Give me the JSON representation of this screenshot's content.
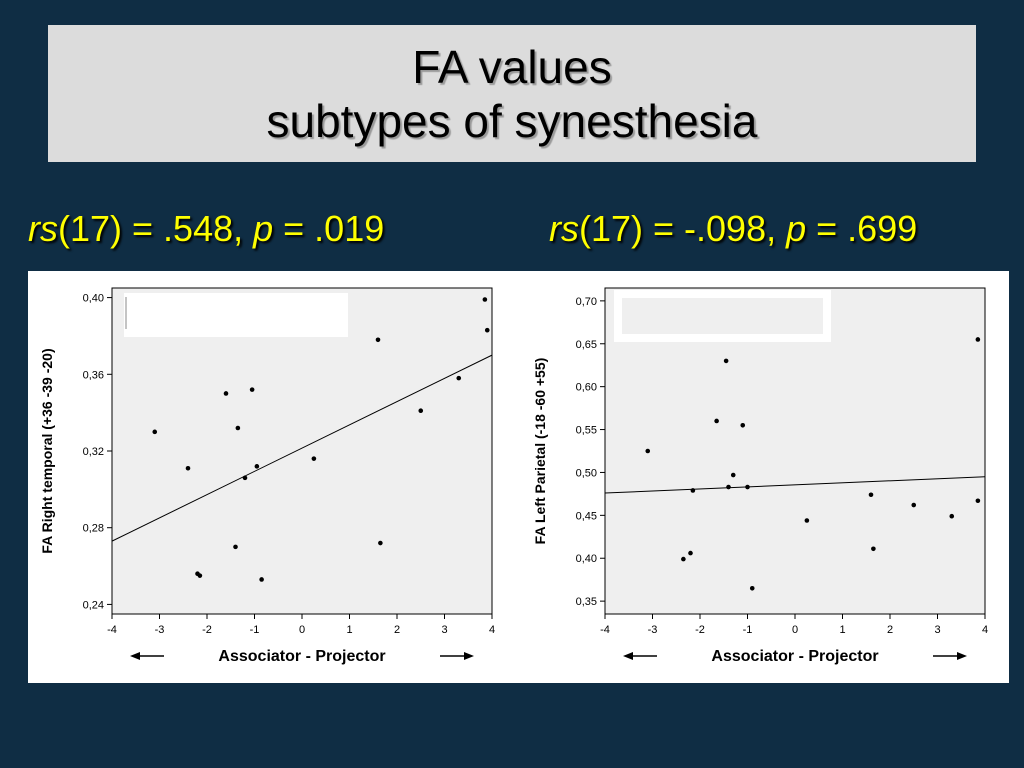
{
  "slide": {
    "title_line1": "FA values",
    "title_line2": "subtypes of synesthesia"
  },
  "stats": [
    {
      "italic1": "rs",
      "mid": "(17) = .548, ",
      "italic2": "p",
      "end": " = .019"
    },
    {
      "italic1": "rs",
      "mid": "(17) = -.098, ",
      "italic2": "p",
      "end": " = .699"
    }
  ],
  "colors": {
    "background": "#0f2d44",
    "title_box": "#dcdcdc",
    "stat_text": "#ffff00",
    "plot_bg": "#efefef"
  },
  "chart_data": [
    {
      "type": "scatter",
      "title": "",
      "xlabel": "Associator   -   Projector",
      "ylabel": "FA Right temporal (+36 -39 -20)",
      "xlim": [
        -4,
        4
      ],
      "ylim": [
        0.235,
        0.405
      ],
      "xticks": [
        -4,
        -3,
        -2,
        -1,
        0,
        1,
        2,
        3,
        4
      ],
      "xtick_labels": [
        "-4",
        "-3",
        "-2",
        "-1",
        "0",
        "1",
        "2",
        "3",
        "4"
      ],
      "yticks": [
        0.24,
        0.28,
        0.32,
        0.36,
        0.4
      ],
      "ytick_labels": [
        "0,24",
        "0,28",
        "0,32",
        "0,36",
        "0,40"
      ],
      "grid": false,
      "points": [
        {
          "x": 3.85,
          "y": 0.399
        },
        {
          "x": 3.9,
          "y": 0.383
        },
        {
          "x": 1.6,
          "y": 0.378
        },
        {
          "x": 3.3,
          "y": 0.358
        },
        {
          "x": -1.05,
          "y": 0.352
        },
        {
          "x": -1.6,
          "y": 0.35
        },
        {
          "x": 2.5,
          "y": 0.341
        },
        {
          "x": -1.35,
          "y": 0.332
        },
        {
          "x": -3.1,
          "y": 0.33
        },
        {
          "x": 0.25,
          "y": 0.316
        },
        {
          "x": -2.4,
          "y": 0.311
        },
        {
          "x": -0.95,
          "y": 0.312
        },
        {
          "x": -1.2,
          "y": 0.306
        },
        {
          "x": 1.65,
          "y": 0.272
        },
        {
          "x": -1.4,
          "y": 0.27
        },
        {
          "x": -2.2,
          "y": 0.256
        },
        {
          "x": -2.15,
          "y": 0.255
        },
        {
          "x": -0.85,
          "y": 0.253
        }
      ],
      "fit_line": {
        "x": [
          -4,
          4
        ],
        "y": [
          0.273,
          0.37
        ]
      }
    },
    {
      "type": "scatter",
      "title": "",
      "xlabel": "Associator   -   Projector",
      "ylabel": "FA Left Parietal (-18 -60 +55)",
      "xlim": [
        -4,
        4
      ],
      "ylim": [
        0.335,
        0.715
      ],
      "xticks": [
        -4,
        -3,
        -2,
        -1,
        0,
        1,
        2,
        3,
        4
      ],
      "xtick_labels": [
        "-4",
        "-3",
        "-2",
        "-1",
        "0",
        "1",
        "2",
        "3",
        "4"
      ],
      "yticks": [
        0.35,
        0.4,
        0.45,
        0.5,
        0.55,
        0.6,
        0.65,
        0.7
      ],
      "ytick_labels": [
        "0,35",
        "0,40",
        "0,45",
        "0,50",
        "0,55",
        "0,60",
        "0,65",
        "0,70"
      ],
      "grid": false,
      "points": [
        {
          "x": 3.85,
          "y": 0.655
        },
        {
          "x": -1.45,
          "y": 0.63
        },
        {
          "x": -1.65,
          "y": 0.56
        },
        {
          "x": -1.1,
          "y": 0.555
        },
        {
          "x": -3.1,
          "y": 0.525
        },
        {
          "x": -1.3,
          "y": 0.497
        },
        {
          "x": -1.4,
          "y": 0.483
        },
        {
          "x": -1.0,
          "y": 0.483
        },
        {
          "x": -2.15,
          "y": 0.479
        },
        {
          "x": 1.6,
          "y": 0.474
        },
        {
          "x": 3.85,
          "y": 0.467
        },
        {
          "x": 2.5,
          "y": 0.462
        },
        {
          "x": 3.3,
          "y": 0.449
        },
        {
          "x": 0.25,
          "y": 0.444
        },
        {
          "x": 1.65,
          "y": 0.411
        },
        {
          "x": -2.2,
          "y": 0.406
        },
        {
          "x": -2.35,
          "y": 0.399
        },
        {
          "x": -0.9,
          "y": 0.365
        }
      ],
      "fit_line": {
        "x": [
          -4,
          4
        ],
        "y": [
          0.476,
          0.495
        ]
      }
    }
  ]
}
